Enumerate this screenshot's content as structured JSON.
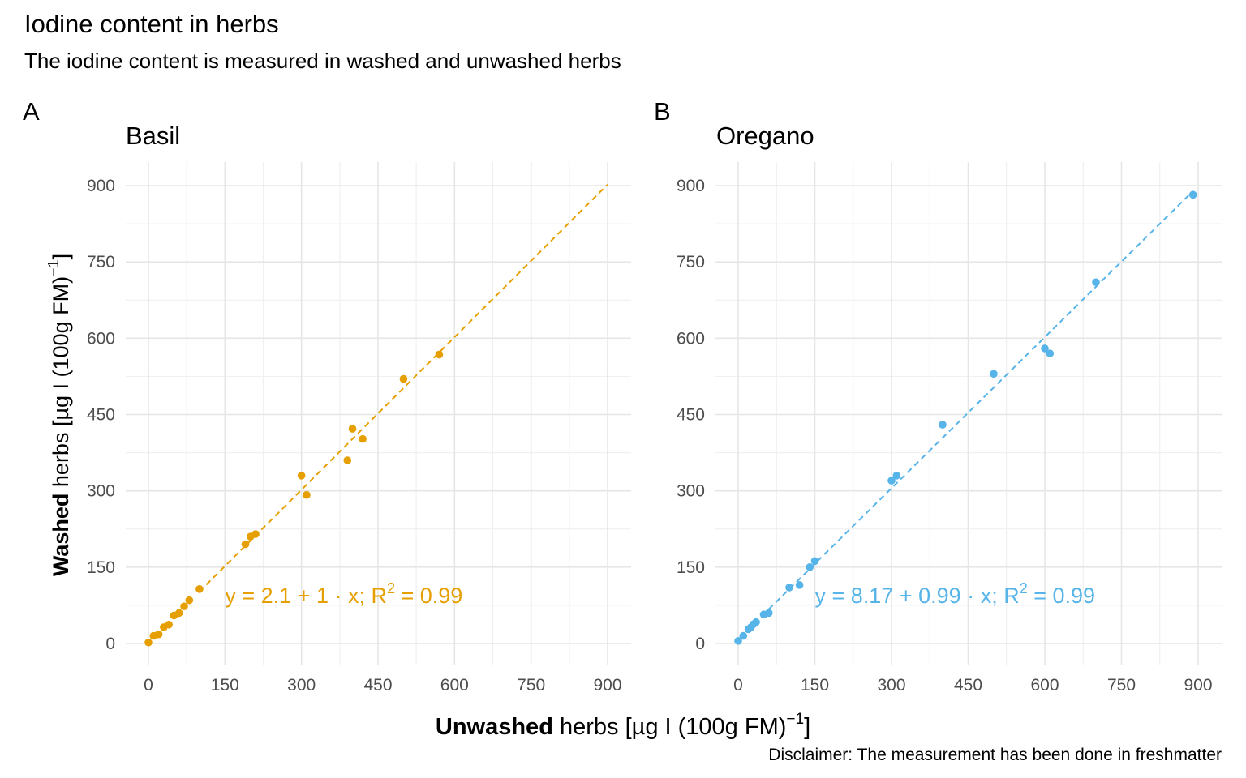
{
  "title": "Iodine content in herbs",
  "subtitle": "The iodine content is measured in washed and unwashed herbs",
  "caption": "Disclaimer: The measurement has been done in freshmatter",
  "axis_labels": {
    "x_bold": "Unwashed",
    "x_rest": " herbs [µg I (100g FM)",
    "y_bold": "Washed",
    "y_rest": " herbs [µg I (100g FM)",
    "exponent": "−1",
    "close": "]"
  },
  "chart_data": [
    {
      "type": "scatter",
      "tag": "A",
      "title": "Basil",
      "color": "#E69F00",
      "xlim": [
        0,
        900
      ],
      "ylim": [
        0,
        900
      ],
      "ticks": [
        0,
        150,
        300,
        450,
        600,
        750,
        900
      ],
      "grid": true,
      "x": [
        0,
        10,
        20,
        30,
        40,
        50,
        60,
        70,
        80,
        100,
        190,
        200,
        210,
        300,
        310,
        390,
        400,
        420,
        500,
        570
      ],
      "y": [
        2,
        15,
        18,
        32,
        37,
        55,
        60,
        73,
        85,
        107,
        195,
        210,
        215,
        330,
        292,
        360,
        422,
        402,
        520,
        568
      ],
      "fit": {
        "intercept": 2.1,
        "slope": 1.0,
        "x_range": [
          100,
          900
        ]
      },
      "equation": {
        "lhs": "y",
        "eq": "=",
        "intercept": "2.1",
        "plus": "+",
        "slope": "1",
        "dot": "·",
        "var": "x;",
        "r2_label": "R",
        "r2_exp": "2",
        "r2_value": "0.99"
      }
    },
    {
      "type": "scatter",
      "tag": "B",
      "title": "Oregano",
      "color": "#56B4E9",
      "xlim": [
        0,
        900
      ],
      "ylim": [
        0,
        900
      ],
      "ticks": [
        0,
        150,
        300,
        450,
        600,
        750,
        900
      ],
      "grid": true,
      "x": [
        0,
        10,
        20,
        25,
        30,
        35,
        50,
        60,
        100,
        120,
        140,
        150,
        300,
        310,
        400,
        500,
        600,
        610,
        700,
        890
      ],
      "y": [
        5,
        15,
        28,
        32,
        38,
        42,
        57,
        60,
        110,
        115,
        150,
        162,
        320,
        330,
        430,
        530,
        580,
        570,
        710,
        882
      ],
      "fit": {
        "intercept": 8.17,
        "slope": 0.99,
        "x_range": [
          60,
          890
        ]
      },
      "equation": {
        "lhs": "y",
        "eq": "=",
        "intercept": "8.17",
        "plus": "+",
        "slope": "0.99",
        "dot": "·",
        "var": "x;",
        "r2_label": "R",
        "r2_exp": "2",
        "r2_value": "0.99"
      }
    }
  ]
}
